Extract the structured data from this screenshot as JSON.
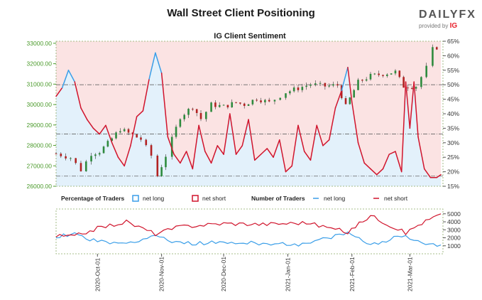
{
  "header": {
    "title": "Wall Street Client Positioning",
    "logo_text": "DAILYFX",
    "logo_sub": "provided by",
    "logo_sub_brand": "IG"
  },
  "colors": {
    "net_long": "#3a9ee8",
    "net_short": "#d0142c",
    "long_fill": "#e3f1fb",
    "short_fill": "#fbe3e3",
    "candle_up": "#2e8b3e",
    "candle_down": "#b22222",
    "left_axis": "#4a9a2a",
    "grid": "#8aaa66"
  },
  "legend": {
    "percentage_label": "Percentage of Traders",
    "number_label": "Number of Traders",
    "net_long": "net long",
    "net_short": "net short"
  },
  "chart_data": [
    {
      "type": "line",
      "title": "IG Client Sentiment",
      "x_tick_labels": [
        "2020-Oct-01",
        "2020-Nov-01",
        "2020-Dec-01",
        "2021-Jan-01",
        "2021-Feb-01",
        "2021-Mar-01"
      ],
      "x_tick_dates": [
        "2020-10-01",
        "2020-11-01",
        "2020-12-01",
        "2021-01-01",
        "2021-02-01",
        "2021-03-01"
      ],
      "x_range": [
        "2020-09-11",
        "2021-03-17"
      ],
      "y_left_ticks": [
        "26000.00",
        "27000.00",
        "28000.00",
        "29000.00",
        "30000.00",
        "31000.00",
        "32000.00",
        "33000.00"
      ],
      "y_left_range": [
        26000,
        33100
      ],
      "y_right_ticks": [
        "15%",
        "20%",
        "25%",
        "30%",
        "35%",
        "40%",
        "45%",
        "50%",
        "55%",
        "60%",
        "65%"
      ],
      "y_right_range": [
        15,
        65
      ],
      "reference_lines": [
        {
          "axis": "right",
          "value": 50
        },
        {
          "axis": "right",
          "value": 33
        },
        {
          "axis": "right",
          "value": 18.5
        }
      ],
      "price_close": [
        {
          "date": "2020-09-11",
          "value": 27600
        },
        {
          "date": "2020-09-18",
          "value": 27400
        },
        {
          "date": "2020-09-23",
          "value": 26800
        },
        {
          "date": "2020-09-28",
          "value": 27600
        },
        {
          "date": "2020-10-02",
          "value": 27700
        },
        {
          "date": "2020-10-06",
          "value": 28100
        },
        {
          "date": "2020-10-12",
          "value": 28800
        },
        {
          "date": "2020-10-16",
          "value": 28600
        },
        {
          "date": "2020-10-22",
          "value": 28300
        },
        {
          "date": "2020-10-27",
          "value": 27500
        },
        {
          "date": "2020-10-30",
          "value": 26500
        },
        {
          "date": "2020-11-03",
          "value": 27500
        },
        {
          "date": "2020-11-06",
          "value": 28300
        },
        {
          "date": "2020-11-10",
          "value": 29400
        },
        {
          "date": "2020-11-16",
          "value": 29900
        },
        {
          "date": "2020-11-20",
          "value": 29300
        },
        {
          "date": "2020-11-25",
          "value": 30000
        },
        {
          "date": "2020-12-01",
          "value": 29900
        },
        {
          "date": "2020-12-07",
          "value": 30100
        },
        {
          "date": "2020-12-11",
          "value": 30000
        },
        {
          "date": "2020-12-17",
          "value": 30300
        },
        {
          "date": "2020-12-23",
          "value": 30100
        },
        {
          "date": "2020-12-31",
          "value": 30600
        },
        {
          "date": "2021-01-06",
          "value": 30800
        },
        {
          "date": "2021-01-12",
          "value": 31000
        },
        {
          "date": "2021-01-19",
          "value": 30900
        },
        {
          "date": "2021-01-25",
          "value": 30950
        },
        {
          "date": "2021-01-29",
          "value": 29900
        },
        {
          "date": "2021-02-04",
          "value": 31100
        },
        {
          "date": "2021-02-10",
          "value": 31400
        },
        {
          "date": "2021-02-16",
          "value": 31500
        },
        {
          "date": "2021-02-22",
          "value": 31600
        },
        {
          "date": "2021-02-26",
          "value": 30900
        },
        {
          "date": "2021-03-04",
          "value": 30900
        },
        {
          "date": "2021-03-09",
          "value": 31800
        },
        {
          "date": "2021-03-12",
          "value": 32700
        },
        {
          "date": "2021-03-16",
          "value": 32900
        }
      ],
      "series": [
        {
          "name": "net long",
          "unit": "%",
          "points": [
            {
              "date": "2020-09-11",
              "value": 46
            },
            {
              "date": "2020-09-14",
              "value": 49
            },
            {
              "date": "2020-09-17",
              "value": 55
            },
            {
              "date": "2020-09-20",
              "value": 51
            },
            {
              "date": "2020-09-23",
              "value": 42
            },
            {
              "date": "2020-09-26",
              "value": 38
            },
            {
              "date": "2020-09-29",
              "value": 35
            },
            {
              "date": "2020-10-02",
              "value": 33
            },
            {
              "date": "2020-10-05",
              "value": 36
            },
            {
              "date": "2020-10-08",
              "value": 30
            },
            {
              "date": "2020-10-11",
              "value": 25
            },
            {
              "date": "2020-10-14",
              "value": 22
            },
            {
              "date": "2020-10-17",
              "value": 29
            },
            {
              "date": "2020-10-20",
              "value": 39
            },
            {
              "date": "2020-10-23",
              "value": 41
            },
            {
              "date": "2020-10-26",
              "value": 52
            },
            {
              "date": "2020-10-29",
              "value": 61
            },
            {
              "date": "2020-11-01",
              "value": 54
            },
            {
              "date": "2020-11-04",
              "value": 32
            },
            {
              "date": "2020-11-07",
              "value": 26
            },
            {
              "date": "2020-11-10",
              "value": 23
            },
            {
              "date": "2020-11-13",
              "value": 27
            },
            {
              "date": "2020-11-16",
              "value": 21
            },
            {
              "date": "2020-11-19",
              "value": 36
            },
            {
              "date": "2020-11-22",
              "value": 27
            },
            {
              "date": "2020-11-25",
              "value": 23
            },
            {
              "date": "2020-11-28",
              "value": 29
            },
            {
              "date": "2020-12-01",
              "value": 26
            },
            {
              "date": "2020-12-04",
              "value": 40
            },
            {
              "date": "2020-12-07",
              "value": 26
            },
            {
              "date": "2020-12-10",
              "value": 29
            },
            {
              "date": "2020-12-13",
              "value": 38
            },
            {
              "date": "2020-12-16",
              "value": 24
            },
            {
              "date": "2020-12-19",
              "value": 26
            },
            {
              "date": "2020-12-22",
              "value": 28
            },
            {
              "date": "2020-12-25",
              "value": 25
            },
            {
              "date": "2020-12-28",
              "value": 31
            },
            {
              "date": "2020-12-31",
              "value": 20
            },
            {
              "date": "2021-01-03",
              "value": 22
            },
            {
              "date": "2021-01-06",
              "value": 36
            },
            {
              "date": "2021-01-09",
              "value": 27
            },
            {
              "date": "2021-01-12",
              "value": 24
            },
            {
              "date": "2021-01-15",
              "value": 36
            },
            {
              "date": "2021-01-18",
              "value": 29
            },
            {
              "date": "2021-01-21",
              "value": 31
            },
            {
              "date": "2021-01-24",
              "value": 42
            },
            {
              "date": "2021-01-27",
              "value": 48
            },
            {
              "date": "2021-01-30",
              "value": 56
            },
            {
              "date": "2021-02-01",
              "value": 44
            },
            {
              "date": "2021-02-04",
              "value": 30
            },
            {
              "date": "2021-02-07",
              "value": 23
            },
            {
              "date": "2021-02-10",
              "value": 21
            },
            {
              "date": "2021-02-13",
              "value": 19
            },
            {
              "date": "2021-02-16",
              "value": 21
            },
            {
              "date": "2021-02-19",
              "value": 26
            },
            {
              "date": "2021-02-22",
              "value": 27
            },
            {
              "date": "2021-02-25",
              "value": 20
            },
            {
              "date": "2021-02-27",
              "value": 51
            },
            {
              "date": "2021-03-01",
              "value": 35
            },
            {
              "date": "2021-03-03",
              "value": 51
            },
            {
              "date": "2021-03-05",
              "value": 32
            },
            {
              "date": "2021-03-08",
              "value": 21
            },
            {
              "date": "2021-03-11",
              "value": 18
            },
            {
              "date": "2021-03-14",
              "value": 18
            },
            {
              "date": "2021-03-16",
              "value": 19
            }
          ]
        }
      ]
    },
    {
      "type": "line",
      "title": "",
      "y_right_ticks": [
        "1000",
        "2000",
        "3000",
        "4000",
        "5000"
      ],
      "y_right_range": [
        0,
        5600
      ],
      "series": [
        {
          "name": "net long",
          "points": [
            {
              "date": "2020-09-11",
              "value": 2200
            },
            {
              "date": "2020-09-20",
              "value": 2500
            },
            {
              "date": "2020-10-01",
              "value": 1500
            },
            {
              "date": "2020-10-15",
              "value": 1300
            },
            {
              "date": "2020-10-29",
              "value": 2300
            },
            {
              "date": "2020-11-10",
              "value": 1300
            },
            {
              "date": "2020-12-01",
              "value": 1400
            },
            {
              "date": "2020-12-20",
              "value": 1300
            },
            {
              "date": "2021-01-10",
              "value": 1200
            },
            {
              "date": "2021-01-30",
              "value": 2600
            },
            {
              "date": "2021-02-10",
              "value": 1100
            },
            {
              "date": "2021-02-27",
              "value": 2400
            },
            {
              "date": "2021-03-05",
              "value": 1400
            },
            {
              "date": "2021-03-16",
              "value": 1100
            }
          ]
        },
        {
          "name": "net short",
          "points": [
            {
              "date": "2020-09-11",
              "value": 2200
            },
            {
              "date": "2020-09-20",
              "value": 2200
            },
            {
              "date": "2020-10-01",
              "value": 3200
            },
            {
              "date": "2020-10-15",
              "value": 4000
            },
            {
              "date": "2020-10-29",
              "value": 2500
            },
            {
              "date": "2020-11-10",
              "value": 3400
            },
            {
              "date": "2020-12-01",
              "value": 3800
            },
            {
              "date": "2020-12-20",
              "value": 3700
            },
            {
              "date": "2021-01-10",
              "value": 3900
            },
            {
              "date": "2021-01-30",
              "value": 2700
            },
            {
              "date": "2021-02-10",
              "value": 4800
            },
            {
              "date": "2021-02-27",
              "value": 2600
            },
            {
              "date": "2021-03-05",
              "value": 3600
            },
            {
              "date": "2021-03-16",
              "value": 5000
            }
          ]
        }
      ]
    }
  ]
}
